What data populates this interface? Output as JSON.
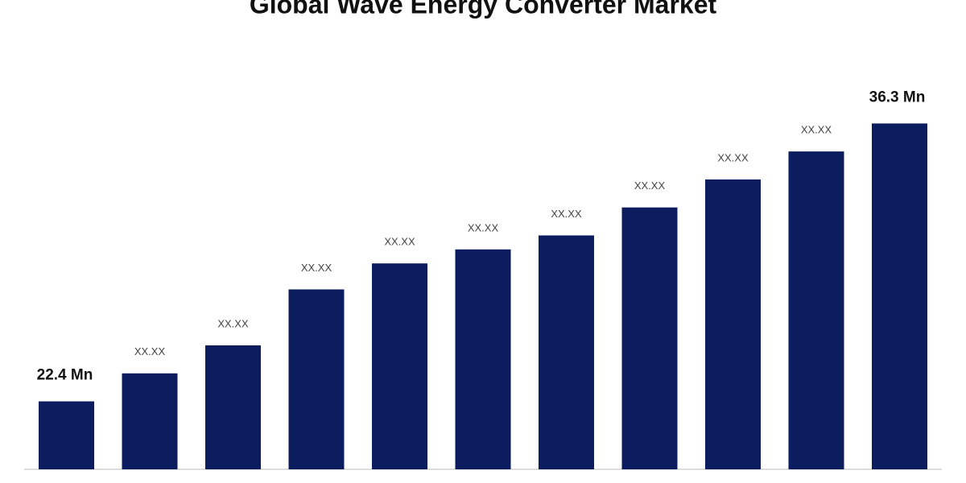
{
  "chart_data": {
    "type": "bar",
    "title": "Global Wave Energy Converter Market",
    "categories": [
      null,
      null,
      null,
      null,
      null,
      null,
      null,
      null,
      null,
      null,
      null
    ],
    "values": [
      22.4,
      23.8,
      25.2,
      28.0,
      29.3,
      30.0,
      30.7,
      32.1,
      33.5,
      34.9,
      36.3
    ],
    "value_labels": [
      "22.4 Mn",
      "XX.XX",
      "XX.XX",
      "XX.XX",
      "XX.XX",
      "XX.XX",
      "XX.XX",
      "XX.XX",
      "XX.XX",
      "XX.XX",
      "36.3 Mn"
    ],
    "color": "#0b1d5e",
    "ylim": [
      19,
      37
    ]
  }
}
